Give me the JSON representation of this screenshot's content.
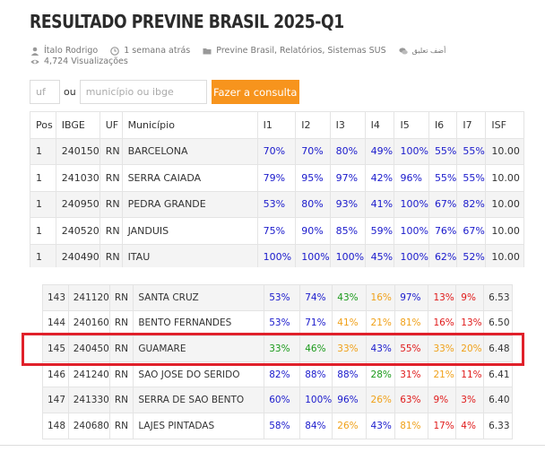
{
  "title": "RESULTADO PREVINE BRASIL 2025-Q1",
  "meta": {
    "author": "Ítalo Rodrigo",
    "time": "1 semana atrás",
    "categories": "Previne Brasil, Relatórios, Sistemas SUS",
    "comment": "أضف تعليق",
    "views": "4,724 Visualizações"
  },
  "search": {
    "uf_placeholder": "uf",
    "ou": "ou",
    "municipio_placeholder": "município ou ibge",
    "button": "Fazer a consulta"
  },
  "table_headers": [
    "Pos",
    "IBGE",
    "UF",
    "Município",
    "I1",
    "I2",
    "I3",
    "I4",
    "I5",
    "I6",
    "I7",
    "ISF"
  ],
  "top_rows": [
    [
      "1",
      "240150",
      "RN",
      "BARCELONA",
      "70%",
      "70%",
      "80%",
      "49%",
      "100%",
      "55%",
      "55%",
      "10.00"
    ],
    [
      "1",
      "241030",
      "RN",
      "SERRA CAIADA",
      "79%",
      "95%",
      "97%",
      "42%",
      "96%",
      "55%",
      "55%",
      "10.00"
    ],
    [
      "1",
      "240950",
      "RN",
      "PEDRA GRANDE",
      "53%",
      "80%",
      "93%",
      "41%",
      "100%",
      "67%",
      "82%",
      "10.00"
    ],
    [
      "1",
      "240520",
      "RN",
      "JANDUIS",
      "75%",
      "90%",
      "85%",
      "59%",
      "100%",
      "76%",
      "67%",
      "10.00"
    ],
    [
      "1",
      "240490",
      "RN",
      "ITAU",
      "100%",
      "100%",
      "100%",
      "45%",
      "100%",
      "62%",
      "52%",
      "10.00"
    ]
  ],
  "bottom_rows": [
    [
      "143",
      "241120",
      "RN",
      "SANTA CRUZ",
      "53%",
      "74%",
      "43%",
      "16%",
      "97%",
      "13%",
      "9%",
      "6.53"
    ],
    [
      "144",
      "240160",
      "RN",
      "BENTO FERNANDES",
      "53%",
      "71%",
      "41%",
      "21%",
      "81%",
      "16%",
      "13%",
      "6.50"
    ],
    [
      "145",
      "240450",
      "RN",
      "GUAMARE",
      "33%",
      "46%",
      "33%",
      "43%",
      "55%",
      "33%",
      "20%",
      "6.48"
    ],
    [
      "146",
      "241240",
      "RN",
      "SAO JOSE DO SERIDO",
      "82%",
      "88%",
      "88%",
      "28%",
      "31%",
      "21%",
      "11%",
      "6.41"
    ],
    [
      "147",
      "241330",
      "RN",
      "SERRA DE SAO BENTO",
      "60%",
      "100%",
      "96%",
      "26%",
      "63%",
      "9%",
      "3%",
      "6.40"
    ],
    [
      "148",
      "240680",
      "RN",
      "LAJES PINTADAS",
      "58%",
      "84%",
      "26%",
      "43%",
      "81%",
      "17%",
      "4%",
      "6.33"
    ]
  ],
  "top_colors": [
    [
      "blue",
      "blue",
      "blue",
      "blue",
      "blue",
      "blue",
      "blue"
    ],
    [
      "blue",
      "blue",
      "blue",
      "blue",
      "blue",
      "blue",
      "blue"
    ],
    [
      "blue",
      "blue",
      "blue",
      "blue",
      "blue",
      "blue",
      "blue"
    ],
    [
      "blue",
      "blue",
      "blue",
      "blue",
      "blue",
      "blue",
      "blue"
    ],
    [
      "blue",
      "blue",
      "blue",
      "blue",
      "blue",
      "blue",
      "blue"
    ]
  ],
  "bottom_colors": [
    [
      "blue",
      "blue",
      "green",
      "orange",
      "blue",
      "red",
      "red"
    ],
    [
      "blue",
      "blue",
      "orange",
      "orange",
      "orange",
      "red",
      "red"
    ],
    [
      "green",
      "green",
      "orange",
      "blue",
      "red",
      "orange",
      "orange"
    ],
    [
      "blue",
      "blue",
      "blue",
      "green",
      "red",
      "orange",
      "red"
    ],
    [
      "blue",
      "blue",
      "blue",
      "orange",
      "red",
      "red",
      "red"
    ],
    [
      "blue",
      "blue",
      "orange",
      "blue",
      "orange",
      "red",
      "red"
    ]
  ],
  "highlighted_row": "145",
  "colors": {
    "accent_button": "#f7941d",
    "highlight_border": "#e0202a",
    "good": "#1a1acc",
    "ok": "#1b9a1b",
    "warn": "#f0a11a",
    "bad": "#e01b1b"
  }
}
